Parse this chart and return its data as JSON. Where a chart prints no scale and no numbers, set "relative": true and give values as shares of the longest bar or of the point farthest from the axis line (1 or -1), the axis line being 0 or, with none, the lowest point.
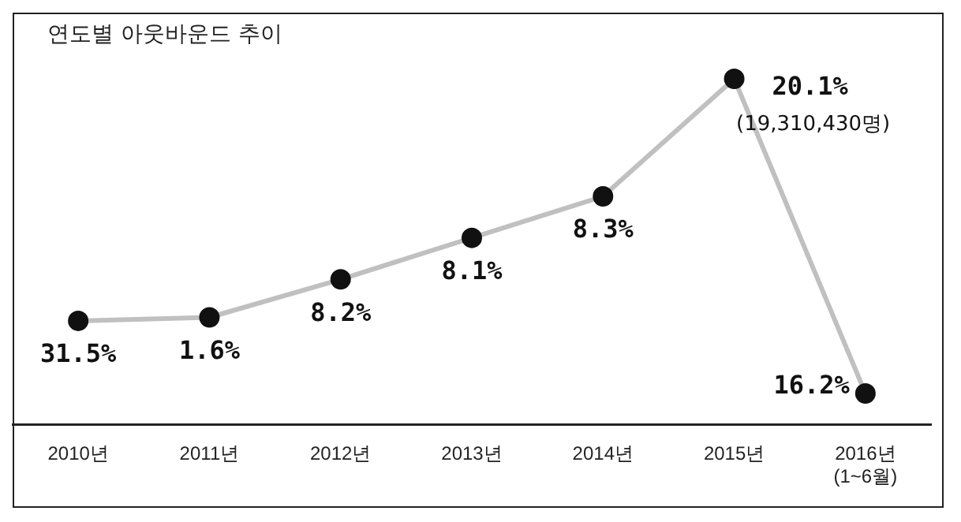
{
  "chart_data": {
    "type": "line",
    "title": "연도별 아웃바운드 추이",
    "relative": true,
    "categories": [
      "2010년",
      "2011년",
      "2012년",
      "2013년",
      "2014년",
      "2015년",
      "2016년\n(1~6월)"
    ],
    "series": [
      {
        "color": "#c0c0c0",
        "values": [
          0.3,
          0.31,
          0.42,
          0.54,
          0.66,
          1,
          0.09
        ]
      }
    ],
    "marker": "circle",
    "grid": false,
    "legend": false,
    "annotations": [
      {
        "text": "31.5%",
        "x": "2010년",
        "y": 0.3
      },
      {
        "text": "1.6%",
        "x": "2011년",
        "y": 0.31
      },
      {
        "text": "8.2%",
        "x": "2012년",
        "y": 0.42
      },
      {
        "text": "8.1%",
        "x": "2013년",
        "y": 0.54
      },
      {
        "text": "8.3%",
        "x": "2014년",
        "y": 0.66
      },
      {
        "text": "20.1%",
        "x": "2015년",
        "y": 1
      },
      {
        "text": "(19,310,430명)",
        "x": "2015년",
        "y": 1
      },
      {
        "text": "16.2%",
        "x": "2016년\n(1~6월)",
        "y": 0.09
      }
    ]
  }
}
